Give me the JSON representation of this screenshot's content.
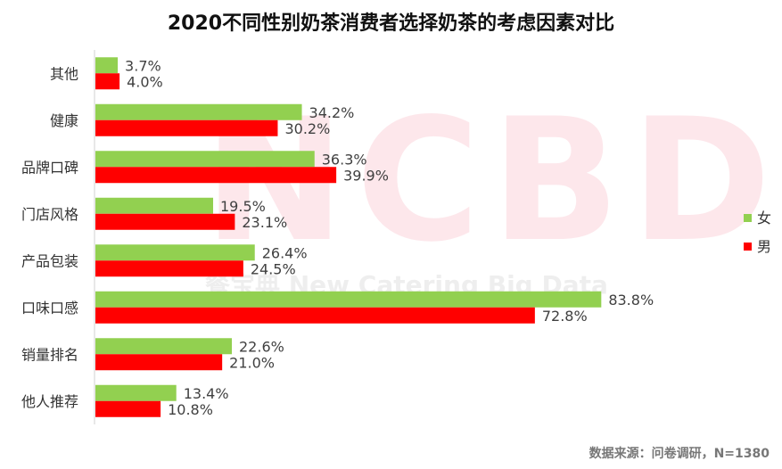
{
  "chart_data": {
    "type": "bar",
    "orientation": "horizontal",
    "title": "2020不同性别奶茶消费者选择奶茶的考虑因素对比",
    "categories": [
      "其他",
      "健康",
      "品牌口碑",
      "门店风格",
      "产品包装",
      "口味口感",
      "销量排名",
      "他人推荐"
    ],
    "series": [
      {
        "name": "女",
        "color": "#92D050",
        "values": [
          3.7,
          34.2,
          36.3,
          19.5,
          26.4,
          83.8,
          22.6,
          13.4
        ]
      },
      {
        "name": "男",
        "color": "#FF0000",
        "values": [
          4.0,
          30.2,
          39.9,
          23.1,
          24.5,
          72.8,
          21.0,
          10.8
        ]
      }
    ],
    "value_suffix": "%",
    "xlim": [
      0,
      100
    ],
    "grid": false,
    "legend_position": "right"
  },
  "source_text": "数据来源：问卷调研，N=1380",
  "watermark": {
    "big": "NCBD",
    "small": "餐宝典 New Catering Big Data"
  }
}
